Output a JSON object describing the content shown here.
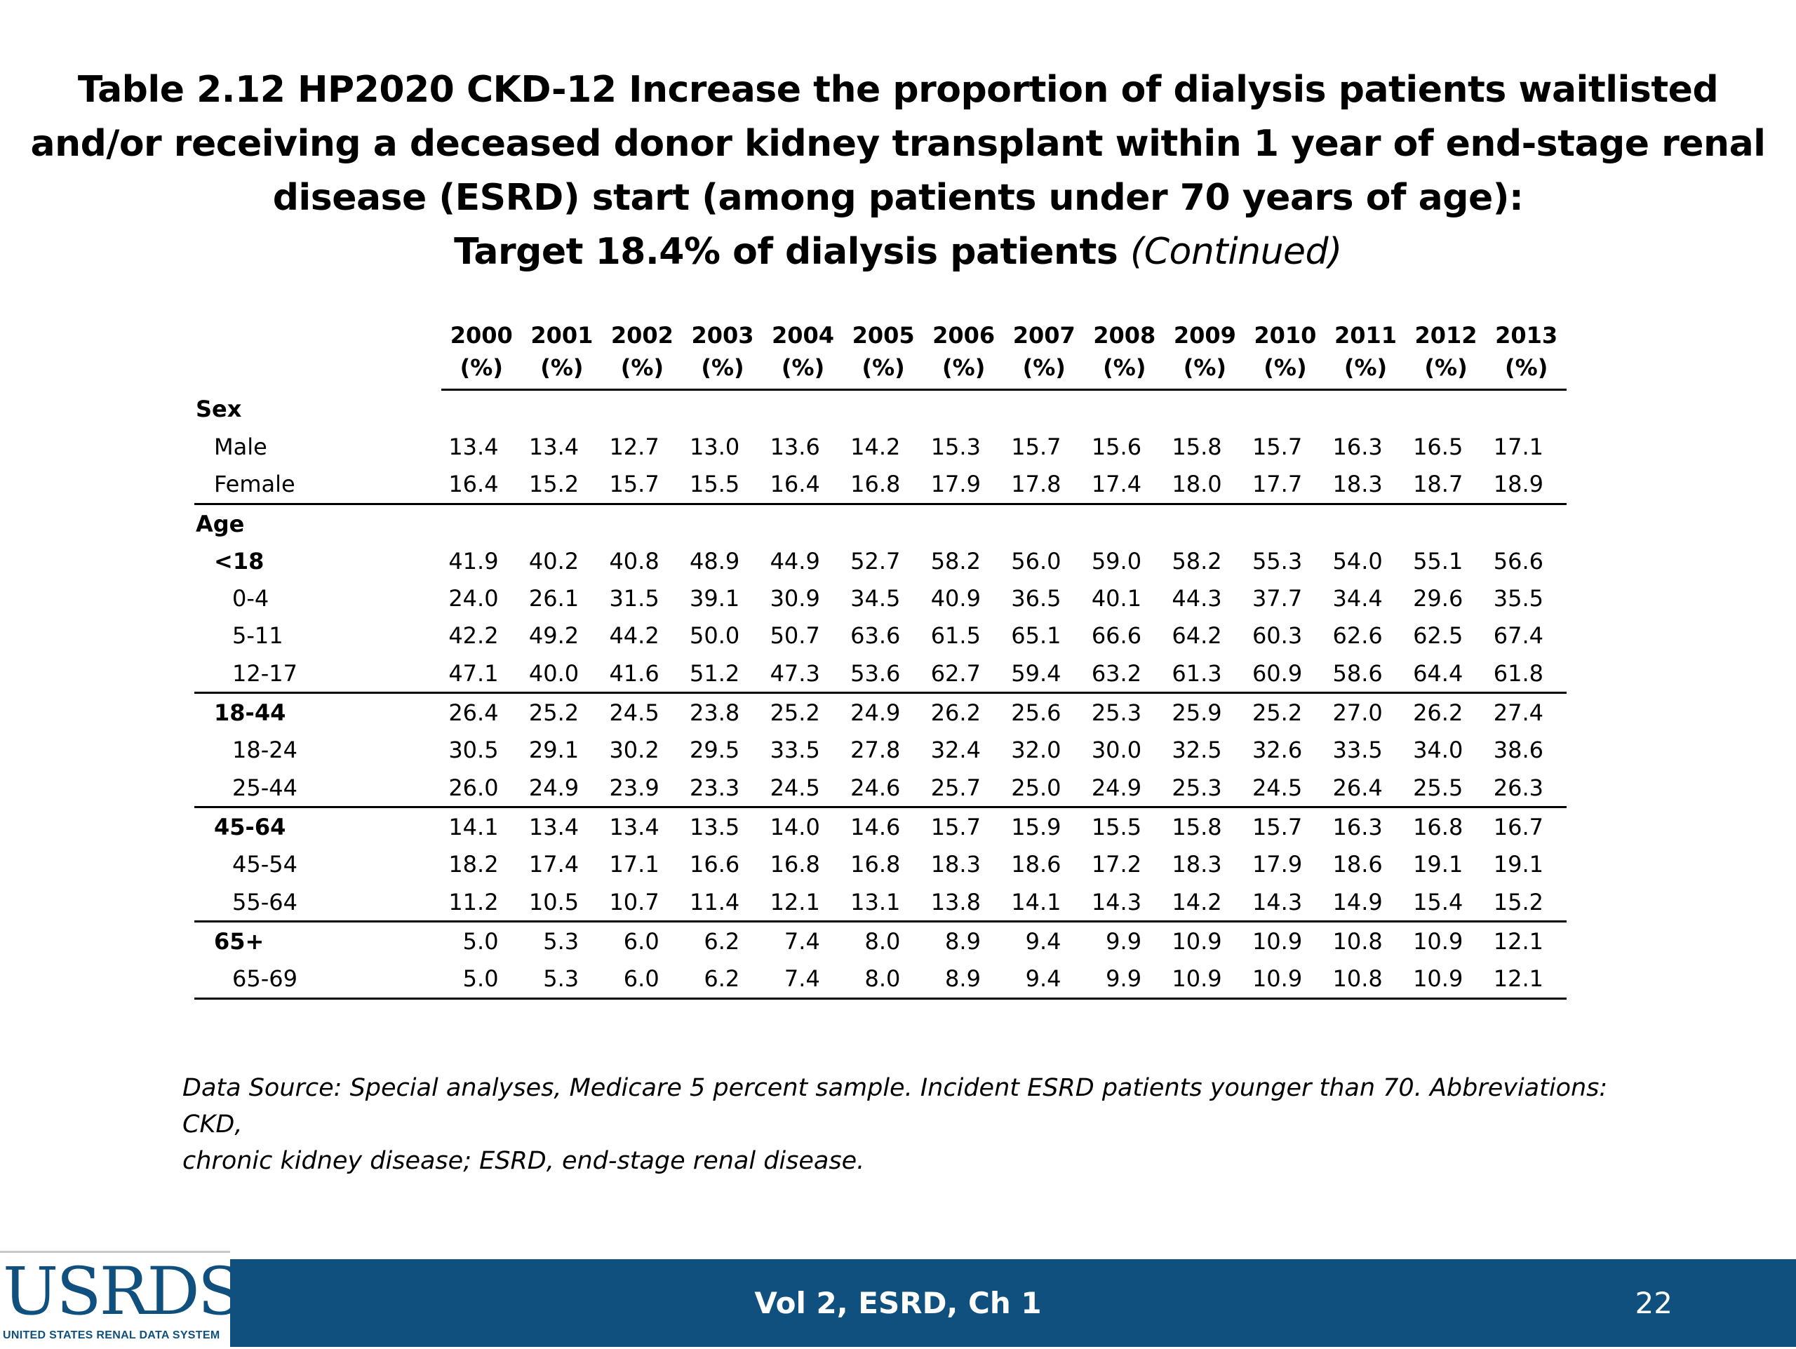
{
  "title": {
    "line1": "Table 2.12  HP2020 CKD-12 Increase the proportion of dialysis patients waitlisted",
    "line2": "and/or receiving a deceased donor kidney transplant within 1 year of end-stage renal",
    "line3": "disease (ESRD) start (among patients under 70 years of age):",
    "line4": "Target 18.4% of dialysis patients",
    "line4_continued": "(Continued)"
  },
  "table": {
    "unit": "(%)",
    "years": [
      "2000",
      "2001",
      "2002",
      "2003",
      "2004",
      "2005",
      "2006",
      "2007",
      "2008",
      "2009",
      "2010",
      "2011",
      "2012",
      "2013"
    ],
    "rows": [
      {
        "label": "Sex",
        "level": "lvl0",
        "values": [],
        "rule": false
      },
      {
        "label": "Male",
        "level": "lvl1",
        "values": [
          "13.4",
          "13.4",
          "12.7",
          "13.0",
          "13.6",
          "14.2",
          "15.3",
          "15.7",
          "15.6",
          "15.8",
          "15.7",
          "16.3",
          "16.5",
          "17.1"
        ],
        "rule": false
      },
      {
        "label": "Female",
        "level": "lvl1",
        "values": [
          "16.4",
          "15.2",
          "15.7",
          "15.5",
          "16.4",
          "16.8",
          "17.9",
          "17.8",
          "17.4",
          "18.0",
          "17.7",
          "18.3",
          "18.7",
          "18.9"
        ],
        "rule": true
      },
      {
        "label": "Age",
        "level": "lvl0",
        "values": [],
        "rule": false
      },
      {
        "label": "<18",
        "level": "lvl1b",
        "values": [
          "41.9",
          "40.2",
          "40.8",
          "48.9",
          "44.9",
          "52.7",
          "58.2",
          "56.0",
          "59.0",
          "58.2",
          "55.3",
          "54.0",
          "55.1",
          "56.6"
        ],
        "rule": false
      },
      {
        "label": "0-4",
        "level": "lvl2",
        "values": [
          "24.0",
          "26.1",
          "31.5",
          "39.1",
          "30.9",
          "34.5",
          "40.9",
          "36.5",
          "40.1",
          "44.3",
          "37.7",
          "34.4",
          "29.6",
          "35.5"
        ],
        "rule": false
      },
      {
        "label": "5-11",
        "level": "lvl2",
        "values": [
          "42.2",
          "49.2",
          "44.2",
          "50.0",
          "50.7",
          "63.6",
          "61.5",
          "65.1",
          "66.6",
          "64.2",
          "60.3",
          "62.6",
          "62.5",
          "67.4"
        ],
        "rule": false
      },
      {
        "label": "12-17",
        "level": "lvl2",
        "values": [
          "47.1",
          "40.0",
          "41.6",
          "51.2",
          "47.3",
          "53.6",
          "62.7",
          "59.4",
          "63.2",
          "61.3",
          "60.9",
          "58.6",
          "64.4",
          "61.8"
        ],
        "rule": true
      },
      {
        "label": "18-44",
        "level": "lvl1b",
        "values": [
          "26.4",
          "25.2",
          "24.5",
          "23.8",
          "25.2",
          "24.9",
          "26.2",
          "25.6",
          "25.3",
          "25.9",
          "25.2",
          "27.0",
          "26.2",
          "27.4"
        ],
        "rule": false
      },
      {
        "label": "18-24",
        "level": "lvl2",
        "values": [
          "30.5",
          "29.1",
          "30.2",
          "29.5",
          "33.5",
          "27.8",
          "32.4",
          "32.0",
          "30.0",
          "32.5",
          "32.6",
          "33.5",
          "34.0",
          "38.6"
        ],
        "rule": false
      },
      {
        "label": "25-44",
        "level": "lvl2",
        "values": [
          "26.0",
          "24.9",
          "23.9",
          "23.3",
          "24.5",
          "24.6",
          "25.7",
          "25.0",
          "24.9",
          "25.3",
          "24.5",
          "26.4",
          "25.5",
          "26.3"
        ],
        "rule": true
      },
      {
        "label": "45-64",
        "level": "lvl1b",
        "values": [
          "14.1",
          "13.4",
          "13.4",
          "13.5",
          "14.0",
          "14.6",
          "15.7",
          "15.9",
          "15.5",
          "15.8",
          "15.7",
          "16.3",
          "16.8",
          "16.7"
        ],
        "rule": false
      },
      {
        "label": "45-54",
        "level": "lvl2",
        "values": [
          "18.2",
          "17.4",
          "17.1",
          "16.6",
          "16.8",
          "16.8",
          "18.3",
          "18.6",
          "17.2",
          "18.3",
          "17.9",
          "18.6",
          "19.1",
          "19.1"
        ],
        "rule": false
      },
      {
        "label": "55-64",
        "level": "lvl2",
        "values": [
          "11.2",
          "10.5",
          "10.7",
          "11.4",
          "12.1",
          "13.1",
          "13.8",
          "14.1",
          "14.3",
          "14.2",
          "14.3",
          "14.9",
          "15.4",
          "15.2"
        ],
        "rule": true
      },
      {
        "label": "65+",
        "level": "lvl1b",
        "values": [
          "5.0",
          "5.3",
          "6.0",
          "6.2",
          "7.4",
          "8.0",
          "8.9",
          "9.4",
          "9.9",
          "10.9",
          "10.9",
          "10.8",
          "10.9",
          "12.1"
        ],
        "rule": false
      },
      {
        "label": "65-69",
        "level": "lvl2",
        "values": [
          "5.0",
          "5.3",
          "6.0",
          "6.2",
          "7.4",
          "8.0",
          "8.9",
          "9.4",
          "9.9",
          "10.9",
          "10.9",
          "10.8",
          "10.9",
          "12.1"
        ],
        "rule": true
      }
    ]
  },
  "footnote": {
    "line1": "Data Source: Special analyses, Medicare 5 percent sample. Incident ESRD patients younger than 70. Abbreviations: CKD,",
    "line2": "chronic kidney disease; ESRD, end-stage renal disease."
  },
  "footer": {
    "center_text": "Vol 2, ESRD, Ch 1",
    "page_number": "22",
    "logo_text": "USRDS",
    "logo_subtitle": "UNITED STATES RENAL DATA SYSTEM",
    "bar_color": "#10507e"
  }
}
